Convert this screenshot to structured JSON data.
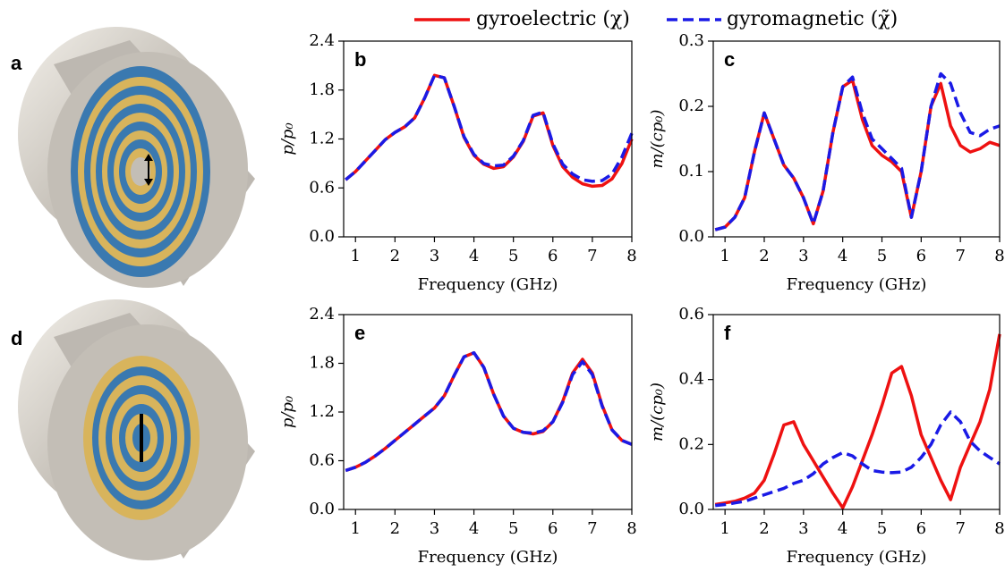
{
  "illustrations": [
    {
      "label": "a"
    },
    {
      "label": "d"
    }
  ],
  "chart_data": [
    {
      "type": "line",
      "label": "b",
      "xlabel": "Frequency (GHz)",
      "ylabel": "p/p₀",
      "xlim": [
        0.7,
        8
      ],
      "ylim": [
        0,
        2.4
      ],
      "xticks": [
        1,
        2,
        3,
        4,
        5,
        6,
        7,
        8
      ],
      "yticks": [
        {
          "value": 0,
          "label": "0.0"
        },
        0.6,
        1.2,
        1.8,
        2.4
      ],
      "x": [
        0.75,
        1.0,
        1.25,
        1.5,
        1.75,
        2.0,
        2.25,
        2.5,
        2.75,
        3.0,
        3.25,
        3.5,
        3.75,
        4.0,
        4.25,
        4.5,
        4.75,
        5.0,
        5.25,
        5.5,
        5.75,
        6.0,
        6.25,
        6.5,
        6.75,
        7.0,
        7.25,
        7.5,
        7.75,
        8.0
      ],
      "series": [
        {
          "name": "gyroelectric (χ)",
          "color": "#ee1111",
          "dashed": false,
          "values": [
            0.7,
            0.8,
            0.93,
            1.06,
            1.19,
            1.28,
            1.35,
            1.46,
            1.7,
            1.98,
            1.95,
            1.6,
            1.22,
            1.0,
            0.89,
            0.84,
            0.86,
            0.98,
            1.17,
            1.48,
            1.52,
            1.12,
            0.86,
            0.73,
            0.65,
            0.62,
            0.63,
            0.71,
            0.9,
            1.2
          ]
        },
        {
          "name": "gyromagnetic (χ̃)",
          "color": "#1a1ae6",
          "dashed": true,
          "values": [
            0.7,
            0.8,
            0.93,
            1.06,
            1.19,
            1.28,
            1.35,
            1.46,
            1.7,
            1.98,
            1.95,
            1.6,
            1.23,
            1.01,
            0.9,
            0.87,
            0.88,
            0.99,
            1.18,
            1.49,
            1.53,
            1.14,
            0.89,
            0.77,
            0.7,
            0.68,
            0.69,
            0.77,
            0.98,
            1.27
          ]
        }
      ]
    },
    {
      "type": "line",
      "label": "c",
      "xlabel": "Frequency (GHz)",
      "ylabel": "m/(cp₀)",
      "xlim": [
        0.7,
        8
      ],
      "ylim": [
        0,
        0.3
      ],
      "xticks": [
        1,
        2,
        3,
        4,
        5,
        6,
        7,
        8
      ],
      "yticks": [
        {
          "value": 0,
          "label": "0.0"
        },
        0.1,
        0.2,
        0.3
      ],
      "x": [
        0.75,
        1.0,
        1.25,
        1.5,
        1.75,
        2.0,
        2.25,
        2.5,
        2.75,
        3.0,
        3.25,
        3.5,
        3.75,
        4.0,
        4.25,
        4.5,
        4.75,
        5.0,
        5.25,
        5.5,
        5.75,
        6.0,
        6.25,
        6.5,
        6.75,
        7.0,
        7.25,
        7.5,
        7.75,
        8.0
      ],
      "series": [
        {
          "color": "#ee1111",
          "dashed": false,
          "values": [
            0.011,
            0.015,
            0.03,
            0.06,
            0.13,
            0.19,
            0.15,
            0.11,
            0.09,
            0.06,
            0.02,
            0.07,
            0.16,
            0.23,
            0.24,
            0.18,
            0.14,
            0.125,
            0.115,
            0.1,
            0.03,
            0.1,
            0.2,
            0.235,
            0.17,
            0.14,
            0.13,
            0.135,
            0.145,
            0.14
          ]
        },
        {
          "color": "#1a1ae6",
          "dashed": true,
          "values": [
            0.011,
            0.015,
            0.03,
            0.06,
            0.13,
            0.19,
            0.15,
            0.11,
            0.09,
            0.06,
            0.02,
            0.07,
            0.16,
            0.23,
            0.245,
            0.19,
            0.15,
            0.135,
            0.12,
            0.105,
            0.03,
            0.1,
            0.2,
            0.25,
            0.235,
            0.19,
            0.16,
            0.155,
            0.165,
            0.17
          ]
        }
      ]
    },
    {
      "type": "line",
      "label": "e",
      "xlabel": "Frequency (GHz)",
      "ylabel": "p/p₀",
      "xlim": [
        0.7,
        8
      ],
      "ylim": [
        0,
        2.4
      ],
      "xticks": [
        1,
        2,
        3,
        4,
        5,
        6,
        7,
        8
      ],
      "yticks": [
        {
          "value": 0,
          "label": "0.0"
        },
        0.6,
        1.2,
        1.8,
        2.4
      ],
      "x": [
        0.75,
        1.0,
        1.25,
        1.5,
        1.75,
        2.0,
        2.25,
        2.5,
        2.75,
        3.0,
        3.25,
        3.5,
        3.75,
        4.0,
        4.25,
        4.5,
        4.75,
        5.0,
        5.25,
        5.5,
        5.75,
        6.0,
        6.25,
        6.5,
        6.75,
        7.0,
        7.25,
        7.5,
        7.75,
        8.0
      ],
      "series": [
        {
          "color": "#ee1111",
          "dashed": false,
          "values": [
            0.48,
            0.52,
            0.58,
            0.66,
            0.75,
            0.85,
            0.95,
            1.05,
            1.15,
            1.25,
            1.4,
            1.65,
            1.88,
            1.93,
            1.75,
            1.42,
            1.15,
            1.0,
            0.95,
            0.93,
            0.96,
            1.08,
            1.33,
            1.68,
            1.85,
            1.68,
            1.28,
            0.98,
            0.85,
            0.8
          ]
        },
        {
          "color": "#1a1ae6",
          "dashed": true,
          "values": [
            0.48,
            0.52,
            0.58,
            0.66,
            0.75,
            0.85,
            0.95,
            1.05,
            1.15,
            1.25,
            1.4,
            1.65,
            1.88,
            1.93,
            1.75,
            1.42,
            1.15,
            1.0,
            0.95,
            0.94,
            0.97,
            1.08,
            1.32,
            1.66,
            1.82,
            1.66,
            1.27,
            0.98,
            0.85,
            0.8
          ]
        }
      ]
    },
    {
      "type": "line",
      "label": "f",
      "xlabel": "Frequency (GHz)",
      "ylabel": "m/(cp₀)",
      "xlim": [
        0.7,
        8
      ],
      "ylim": [
        0,
        0.6
      ],
      "xticks": [
        1,
        2,
        3,
        4,
        5,
        6,
        7,
        8
      ],
      "yticks": [
        {
          "value": 0,
          "label": "0.0"
        },
        0.2,
        0.4,
        0.6
      ],
      "x": [
        0.75,
        1.0,
        1.25,
        1.5,
        1.75,
        2.0,
        2.25,
        2.5,
        2.75,
        3.0,
        3.25,
        3.5,
        3.75,
        4.0,
        4.25,
        4.5,
        4.75,
        5.0,
        5.25,
        5.5,
        5.75,
        6.0,
        6.25,
        6.5,
        6.75,
        7.0,
        7.25,
        7.5,
        7.75,
        8.0
      ],
      "series": [
        {
          "color": "#ee1111",
          "dashed": false,
          "values": [
            0.015,
            0.02,
            0.025,
            0.035,
            0.05,
            0.09,
            0.17,
            0.26,
            0.27,
            0.2,
            0.15,
            0.1,
            0.05,
            0.005,
            0.07,
            0.15,
            0.23,
            0.32,
            0.42,
            0.44,
            0.35,
            0.23,
            0.16,
            0.09,
            0.03,
            0.13,
            0.2,
            0.27,
            0.37,
            0.54
          ]
        },
        {
          "color": "#1a1ae6",
          "dashed": true,
          "values": [
            0.012,
            0.015,
            0.02,
            0.025,
            0.035,
            0.045,
            0.055,
            0.065,
            0.08,
            0.09,
            0.11,
            0.14,
            0.16,
            0.175,
            0.165,
            0.14,
            0.12,
            0.115,
            0.113,
            0.115,
            0.13,
            0.16,
            0.2,
            0.26,
            0.3,
            0.27,
            0.21,
            0.18,
            0.16,
            0.14
          ]
        }
      ]
    }
  ]
}
